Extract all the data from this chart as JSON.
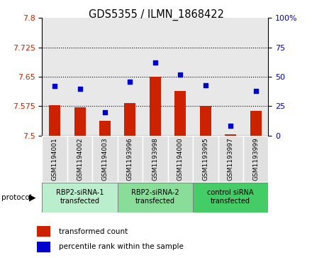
{
  "title": "GDS5355 / ILMN_1868422",
  "samples": [
    "GSM1194001",
    "GSM1194002",
    "GSM1194003",
    "GSM1193996",
    "GSM1193998",
    "GSM1194000",
    "GSM1193995",
    "GSM1193997",
    "GSM1193999"
  ],
  "red_values": [
    7.578,
    7.572,
    7.538,
    7.582,
    7.65,
    7.614,
    7.575,
    7.502,
    7.563
  ],
  "blue_values_pct": [
    42,
    40,
    20,
    46,
    62,
    52,
    43,
    8,
    38
  ],
  "ylim_left": [
    7.5,
    7.8
  ],
  "ylim_right": [
    0,
    100
  ],
  "yticks_left": [
    7.5,
    7.575,
    7.65,
    7.725,
    7.8
  ],
  "ytick_labels_left": [
    "7.5",
    "7.575",
    "7.65",
    "7.725",
    "7.8"
  ],
  "yticks_right": [
    0,
    25,
    50,
    75,
    100
  ],
  "ytick_labels_right": [
    "0",
    "25",
    "50",
    "75",
    "100%"
  ],
  "grid_lines": [
    7.575,
    7.65,
    7.725
  ],
  "protocols": [
    {
      "label": "RBP2-siRNA-1\ntransfected",
      "start": 0,
      "end": 2,
      "color": "#aaeebb"
    },
    {
      "label": "RBP2-siRNA-2\ntransfected",
      "start": 3,
      "end": 5,
      "color": "#88dd99"
    },
    {
      "label": "control siRNA\ntransfected",
      "start": 6,
      "end": 8,
      "color": "#44bb55"
    }
  ],
  "bar_color": "#cc2200",
  "dot_color": "#0000cc",
  "bar_bottom": 7.5,
  "legend_red_label": "transformed count",
  "legend_blue_label": "percentile rank within the sample",
  "protocol_label": "protocol"
}
